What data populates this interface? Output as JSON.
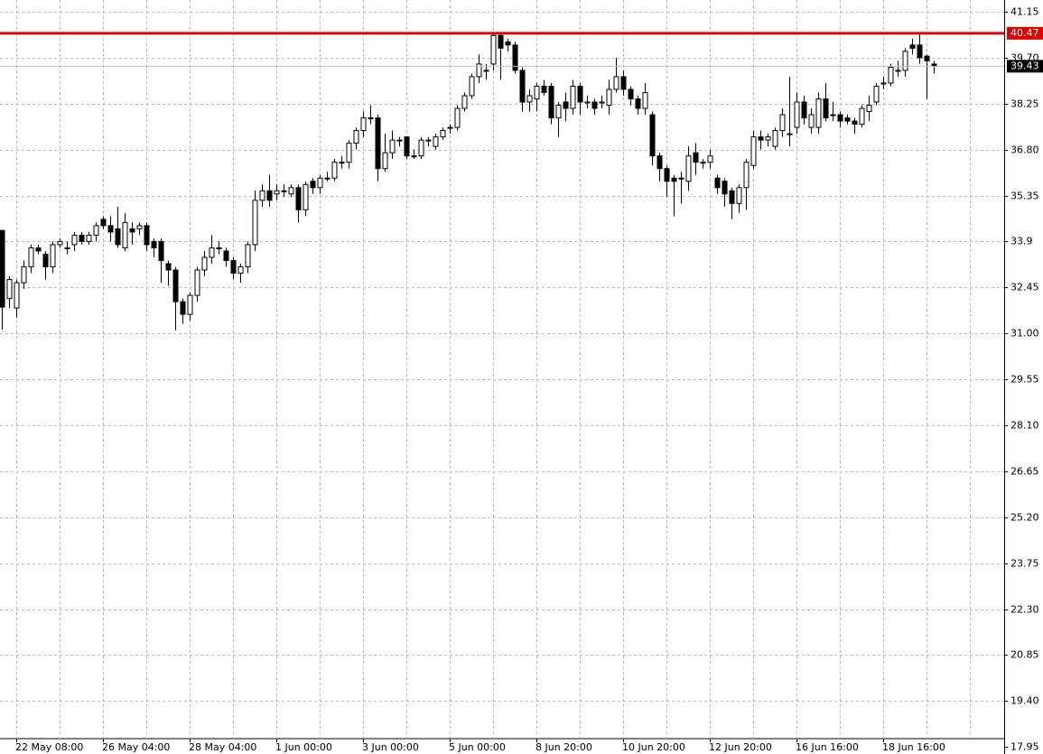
{
  "chart_data": {
    "type": "candlestick",
    "categories": [
      null,
      null,
      "22 May 08:00",
      null,
      null,
      null,
      null,
      null,
      null,
      null,
      null,
      null,
      null,
      null,
      "26 May 04:00",
      null,
      null,
      null,
      null,
      null,
      null,
      null,
      null,
      null,
      null,
      null,
      "28 May 04:00",
      null,
      null,
      null,
      null,
      null,
      null,
      null,
      null,
      null,
      null,
      null,
      "1 Jun 00:00",
      null,
      null,
      null,
      null,
      null,
      null,
      null,
      null,
      null,
      null,
      null,
      "3 Jun 00:00",
      null,
      null,
      null,
      null,
      null,
      null,
      null,
      null,
      null,
      null,
      null,
      "5 Jun 00:00",
      null,
      null,
      null,
      null,
      null,
      null,
      null,
      null,
      null,
      null,
      null,
      "8 Jun 20:00",
      null,
      null,
      null,
      null,
      null,
      null,
      null,
      null,
      null,
      null,
      null,
      "10 Jun 20:00",
      null,
      null,
      null,
      null,
      null,
      null,
      null,
      null,
      null,
      null,
      null,
      "12 Jun 20:00",
      null,
      null,
      null,
      null,
      null,
      null,
      null,
      null,
      null,
      null,
      null,
      "16 Jun 16:00",
      null,
      null,
      null,
      null,
      null,
      null,
      null,
      null,
      null,
      null,
      null,
      "18 Jun 16:00",
      null,
      null,
      null,
      null,
      null,
      null,
      null
    ],
    "open": [
      34.25,
      32.1,
      31.8,
      32.6,
      33.1,
      33.7,
      33.5,
      33.1,
      33.8,
      33.7,
      33.8,
      34.1,
      33.9,
      34.1,
      34.6,
      34.4,
      34.3,
      33.7,
      34.3,
      34.3,
      34.4,
      33.9,
      33.9,
      33.2,
      33.0,
      32.0,
      31.6,
      32.2,
      33.0,
      33.4,
      33.7,
      33.6,
      33.3,
      32.9,
      33.1,
      33.8,
      35.2,
      35.5,
      35.4,
      35.5,
      35.4,
      35.6,
      34.9,
      35.8,
      35.6,
      35.9,
      35.9,
      36.4,
      36.4,
      37.0,
      37.4,
      37.8,
      37.8,
      36.2,
      36.7,
      37.1,
      37.2,
      36.6,
      36.6,
      37.1,
      36.9,
      37.2,
      37.5,
      37.5,
      38.1,
      38.5,
      39.1,
      39.3,
      39.5,
      40.4,
      40.2,
      40.1,
      39.3,
      38.3,
      38.4,
      38.8,
      38.8,
      37.8,
      38.3,
      38.1,
      38.8,
      38.3,
      38.3,
      38.3,
      38.2,
      38.7,
      39.1,
      38.7,
      38.4,
      38.1,
      37.9,
      36.6,
      36.2,
      35.9,
      35.9,
      35.8,
      36.7,
      36.4,
      36.4,
      35.9,
      35.8,
      35.5,
      35.1,
      35.6,
      36.3,
      37.2,
      37.1,
      36.9,
      37.4,
      37.3,
      37.5,
      38.3,
      37.5,
      37.5,
      38.4,
      37.9,
      37.9,
      37.8,
      37.7,
      37.6,
      38.0,
      38.3,
      38.9,
      38.9,
      39.3,
      39.3,
      40.1,
      40.1,
      39.75,
      39.5
    ],
    "high": [
      34.25,
      32.8,
      32.7,
      33.3,
      33.8,
      33.8,
      33.6,
      33.9,
      34.0,
      33.9,
      34.2,
      34.2,
      34.2,
      34.5,
      34.7,
      34.7,
      35.0,
      34.8,
      34.5,
      34.5,
      34.5,
      34.0,
      34.0,
      33.3,
      33.1,
      32.1,
      32.3,
      33.1,
      33.6,
      34.1,
      33.9,
      33.7,
      33.4,
      33.2,
      33.9,
      35.5,
      35.7,
      36.0,
      35.7,
      35.7,
      35.7,
      35.7,
      35.8,
      35.9,
      36.0,
      36.1,
      36.5,
      36.6,
      37.1,
      37.5,
      38.0,
      38.2,
      37.9,
      37.3,
      37.4,
      37.2,
      37.2,
      36.8,
      37.2,
      37.2,
      37.3,
      37.5,
      37.6,
      38.2,
      38.6,
      39.2,
      39.8,
      39.5,
      40.5,
      40.5,
      40.3,
      40.2,
      39.4,
      38.7,
      38.9,
      39.0,
      38.9,
      38.3,
      38.6,
      39.0,
      38.9,
      38.5,
      38.4,
      38.5,
      39.0,
      39.7,
      39.3,
      38.8,
      38.5,
      38.9,
      38.0,
      36.7,
      36.3,
      36.0,
      36.1,
      36.9,
      37.0,
      36.5,
      36.8,
      36.0,
      35.9,
      35.6,
      35.7,
      36.5,
      37.4,
      37.4,
      37.3,
      37.5,
      38.1,
      39.1,
      38.6,
      38.5,
      38.1,
      38.6,
      38.9,
      38.3,
      38.0,
      37.9,
      37.8,
      38.2,
      38.5,
      38.9,
      39.1,
      39.5,
      39.6,
      40.0,
      40.3,
      40.47,
      39.8,
      39.6
    ],
    "low": [
      31.12,
      31.8,
      31.5,
      32.4,
      32.9,
      33.5,
      32.7,
      32.9,
      33.7,
      33.5,
      33.6,
      33.8,
      33.8,
      33.9,
      34.3,
      33.9,
      33.7,
      33.6,
      33.8,
      34.1,
      33.6,
      33.4,
      32.6,
      32.5,
      31.1,
      31.3,
      31.4,
      32.0,
      32.8,
      33.2,
      33.5,
      33.1,
      32.7,
      32.6,
      32.9,
      33.6,
      35.0,
      35.0,
      35.2,
      35.3,
      35.3,
      34.5,
      34.7,
      35.4,
      35.4,
      35.8,
      35.8,
      36.2,
      36.2,
      36.8,
      37.2,
      37.6,
      35.8,
      36.1,
      36.5,
      36.9,
      36.5,
      36.5,
      36.5,
      36.9,
      36.8,
      37.1,
      37.3,
      37.4,
      38.0,
      38.4,
      38.9,
      39.0,
      39.3,
      39.0,
      39.9,
      39.2,
      38.0,
      38.0,
      38.0,
      38.5,
      37.6,
      37.2,
      37.7,
      37.9,
      37.9,
      38.1,
      37.9,
      38.1,
      37.9,
      38.6,
      38.5,
      38.2,
      37.9,
      37.9,
      36.3,
      35.8,
      35.3,
      34.7,
      35.1,
      35.5,
      36.0,
      36.2,
      36.2,
      35.4,
      35.0,
      34.6,
      34.8,
      34.9,
      36.2,
      36.8,
      36.9,
      36.8,
      37.2,
      36.9,
      37.3,
      37.6,
      37.3,
      37.3,
      37.7,
      37.7,
      37.5,
      37.6,
      37.3,
      37.5,
      37.7,
      38.2,
      38.7,
      38.8,
      39.1,
      39.1,
      39.8,
      39.5,
      38.4,
      39.2
    ],
    "close": [
      31.83,
      32.7,
      32.6,
      33.1,
      33.7,
      33.6,
      33.1,
      33.8,
      33.9,
      33.7,
      34.1,
      33.9,
      34.1,
      34.4,
      34.4,
      34.2,
      33.8,
      34.5,
      34.2,
      34.4,
      33.8,
      33.7,
      33.3,
      33.0,
      32.0,
      31.6,
      32.2,
      33.0,
      33.4,
      33.7,
      33.7,
      33.3,
      32.9,
      33.1,
      33.8,
      35.2,
      35.5,
      35.2,
      35.5,
      35.5,
      35.6,
      34.9,
      35.7,
      35.6,
      35.9,
      35.9,
      36.4,
      36.4,
      37.0,
      37.4,
      37.8,
      37.8,
      36.2,
      36.7,
      37.1,
      37.1,
      36.6,
      36.6,
      37.1,
      37.1,
      37.2,
      37.4,
      37.5,
      38.1,
      38.5,
      39.1,
      39.5,
      39.3,
      40.4,
      40.0,
      40.1,
      39.3,
      38.3,
      38.5,
      38.8,
      38.6,
      37.8,
      38.2,
      38.1,
      38.8,
      38.3,
      38.3,
      38.1,
      38.3,
      38.7,
      39.1,
      38.7,
      38.4,
      38.1,
      38.6,
      36.6,
      36.2,
      35.8,
      35.8,
      35.9,
      36.6,
      36.4,
      36.4,
      36.6,
      35.6,
      35.4,
      35.1,
      35.6,
      36.4,
      37.2,
      37.1,
      37.2,
      37.4,
      37.9,
      37.3,
      38.3,
      37.8,
      37.9,
      38.4,
      37.8,
      37.9,
      37.7,
      37.7,
      37.6,
      38.1,
      38.2,
      38.8,
      38.9,
      39.4,
      39.3,
      39.9,
      40.0,
      39.7,
      39.6,
      39.43
    ],
    "up_color": "#ffffff",
    "down_color": "#000000",
    "ylim": [
      17.7,
      41.52
    ],
    "yticks": [
      41.15,
      {
        "value": 39.7,
        "label": "39.70"
      },
      38.25,
      {
        "value": 36.8,
        "label": "36.80"
      },
      35.35,
      33.9,
      32.45,
      {
        "value": 31.0,
        "label": "31.00"
      },
      29.55,
      {
        "value": 28.1,
        "label": "28.10"
      },
      26.65,
      {
        "value": 25.2,
        "label": "25.20"
      },
      23.75,
      {
        "value": 22.3,
        "label": "22.30"
      },
      20.85,
      {
        "value": 19.4,
        "label": "19.40"
      },
      17.95
    ],
    "grid": true,
    "level": {
      "value": 40.47,
      "color": "#e00000"
    },
    "last_price": 39.43
  }
}
